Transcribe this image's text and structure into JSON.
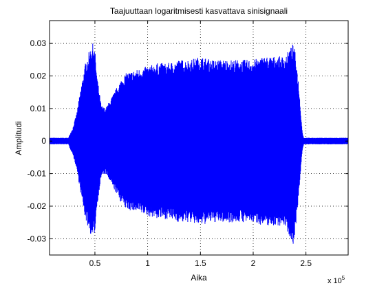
{
  "chart_data": {
    "type": "line",
    "title": "Taajuuttaan logaritmisesti kasvattava sinisignaali",
    "xlabel": "Aika",
    "ylabel": "Amplitudi",
    "x_multiplier_prefix": "x 10",
    "x_multiplier_exponent": "5",
    "xlim": [
      0.07,
      2.9
    ],
    "ylim": [
      -0.035,
      0.037
    ],
    "x_unit_scale": 100000,
    "xticks": [
      0.5,
      1,
      1.5,
      2,
      2.5
    ],
    "xtick_labels": [
      "0.5",
      "1",
      "1.5",
      "2",
      "2.5"
    ],
    "yticks": [
      -0.03,
      -0.02,
      -0.01,
      0,
      0.01,
      0.02,
      0.03
    ],
    "ytick_labels": [
      "-0.03",
      "-0.02",
      "-0.01",
      "0",
      "0.01",
      "0.02",
      "0.03"
    ],
    "grid": true,
    "grid_style": "dotted",
    "series": [
      {
        "color": "#0000ff",
        "envelope_x": [
          0.07,
          0.25,
          0.26,
          0.29,
          0.33,
          0.37,
          0.41,
          0.45,
          0.48,
          0.5,
          0.52,
          0.56,
          0.6,
          0.65,
          0.7,
          0.75,
          0.8,
          0.9,
          1.0,
          1.1,
          1.2,
          1.3,
          1.4,
          1.5,
          1.6,
          1.7,
          1.8,
          1.9,
          2.0,
          2.1,
          2.2,
          2.3,
          2.38,
          2.4,
          2.43,
          2.46,
          2.47,
          2.48,
          2.9
        ],
        "envelope_upper": [
          0.001,
          0.001,
          0.002,
          0.004,
          0.009,
          0.017,
          0.024,
          0.028,
          0.03,
          0.028,
          0.02,
          0.011,
          0.01,
          0.013,
          0.016,
          0.019,
          0.021,
          0.022,
          0.023,
          0.024,
          0.024,
          0.025,
          0.025,
          0.026,
          0.025,
          0.025,
          0.025,
          0.025,
          0.025,
          0.026,
          0.026,
          0.026,
          0.03,
          0.027,
          0.018,
          0.005,
          0.002,
          0.001,
          0.001
        ],
        "envelope_lower": [
          -0.001,
          -0.001,
          -0.002,
          -0.004,
          -0.009,
          -0.017,
          -0.024,
          -0.028,
          -0.03,
          -0.028,
          -0.02,
          -0.011,
          -0.01,
          -0.013,
          -0.016,
          -0.019,
          -0.021,
          -0.022,
          -0.023,
          -0.024,
          -0.024,
          -0.025,
          -0.025,
          -0.026,
          -0.025,
          -0.025,
          -0.025,
          -0.025,
          -0.025,
          -0.026,
          -0.026,
          -0.026,
          -0.032,
          -0.027,
          -0.018,
          -0.005,
          -0.002,
          -0.001,
          -0.001
        ]
      }
    ]
  }
}
